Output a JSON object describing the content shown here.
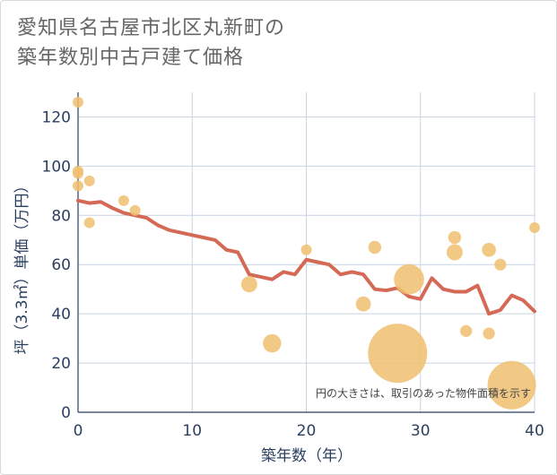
{
  "title": {
    "line1": "愛知県名古屋市北区丸新町の",
    "line2": "築年数別中古戸建て価格"
  },
  "colors": {
    "line": "#d46a56",
    "bubble": "#f0c06e",
    "grid": "#c8d4e3",
    "axis_text": "#2a3f5f"
  },
  "chart_data": {
    "type": "scatter",
    "xlabel": "築年数（年）",
    "ylabel": "坪（3.3㎡）単価（万円）",
    "xlim": [
      0,
      40
    ],
    "ylim": [
      0,
      130
    ],
    "x_ticks": [
      0,
      10,
      20,
      30,
      40
    ],
    "y_ticks": [
      0,
      20,
      40,
      60,
      80,
      100,
      120
    ],
    "grid": true,
    "annotation": "円の大きさは、取引のあった物件面積を示す",
    "bubbles": [
      {
        "x": 0,
        "y": 126,
        "s": 1
      },
      {
        "x": 0,
        "y": 98,
        "s": 1
      },
      {
        "x": 0,
        "y": 97,
        "s": 1
      },
      {
        "x": 0,
        "y": 92,
        "s": 1
      },
      {
        "x": 1,
        "y": 94,
        "s": 1
      },
      {
        "x": 1,
        "y": 77,
        "s": 1
      },
      {
        "x": 4,
        "y": 86,
        "s": 1
      },
      {
        "x": 5,
        "y": 82,
        "s": 1
      },
      {
        "x": 15,
        "y": 52,
        "s": 1.5
      },
      {
        "x": 17,
        "y": 28,
        "s": 1.7
      },
      {
        "x": 20,
        "y": 66,
        "s": 1
      },
      {
        "x": 25,
        "y": 44,
        "s": 1.4
      },
      {
        "x": 26,
        "y": 67,
        "s": 1.2
      },
      {
        "x": 28,
        "y": 24,
        "s": 5.5
      },
      {
        "x": 29,
        "y": 54,
        "s": 2.8
      },
      {
        "x": 33,
        "y": 71,
        "s": 1.2
      },
      {
        "x": 33,
        "y": 65,
        "s": 1.5
      },
      {
        "x": 34,
        "y": 33,
        "s": 1.1
      },
      {
        "x": 36,
        "y": 66,
        "s": 1.3
      },
      {
        "x": 36,
        "y": 32,
        "s": 1.1
      },
      {
        "x": 37,
        "y": 60,
        "s": 1.1
      },
      {
        "x": 38,
        "y": 11,
        "s": 4.5
      },
      {
        "x": 40,
        "y": 75,
        "s": 1
      }
    ],
    "line": {
      "x": [
        0,
        1,
        2,
        3,
        4,
        5,
        6,
        7,
        8,
        9,
        10,
        11,
        12,
        13,
        14,
        15,
        16,
        17,
        18,
        19,
        20,
        21,
        22,
        23,
        24,
        25,
        26,
        27,
        28,
        29,
        30,
        31,
        32,
        33,
        34,
        35,
        36,
        37,
        38,
        39,
        40
      ],
      "y": [
        86,
        85,
        85.5,
        83,
        81,
        80,
        79,
        76,
        74,
        73,
        72,
        71,
        70,
        66,
        65,
        56,
        55,
        54,
        57,
        56,
        62,
        61,
        60,
        56,
        57,
        56,
        50,
        49.5,
        50.5,
        47,
        46,
        54.5,
        50,
        49,
        49,
        51.5,
        40,
        41.5,
        47.5,
        45.5,
        41
      ]
    }
  }
}
